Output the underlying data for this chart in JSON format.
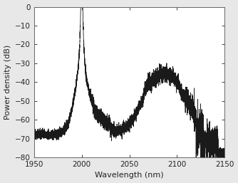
{
  "xlabel": "Wavelength (nm)",
  "ylabel": "Power density (dB)",
  "xlim": [
    1950,
    2150
  ],
  "ylim": [
    -80,
    0
  ],
  "xticks": [
    1950,
    2000,
    2050,
    2100,
    2150
  ],
  "yticks": [
    0,
    -10,
    -20,
    -30,
    -40,
    -50,
    -60,
    -70,
    -80
  ],
  "line_color": "#1a1a1a",
  "background_color": "#e8e8e8",
  "axes_background": "#ffffff",
  "linewidth": 0.6,
  "seed": 42
}
